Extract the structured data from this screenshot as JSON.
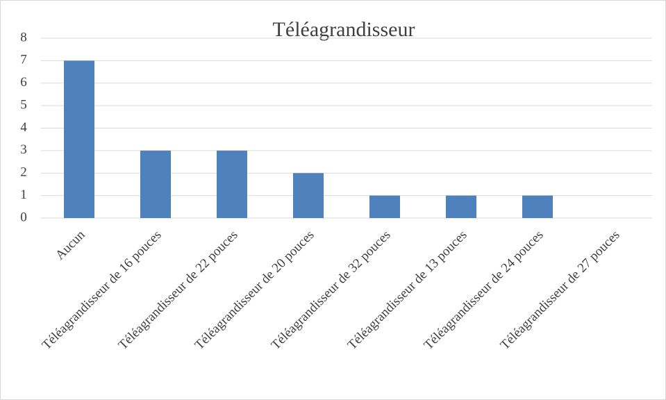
{
  "chart_data": {
    "type": "bar",
    "title": "Téléagrandisseur",
    "categories": [
      "Aucun",
      "Téléagrandisseur de 16 pouces",
      "Téléagrandisseur de 22 pouces",
      "Téléagrandisseur de 20 pouces",
      "Téléagrandisseur de 32 pouces",
      "Téléagrandisseur de 13 pouces",
      "Téléagrandisseur de 24 pouces",
      "Téléagrandisseur de 27 pouces"
    ],
    "values": [
      7,
      3,
      3,
      2,
      1,
      1,
      1,
      0
    ],
    "color": "#4f81bd",
    "ylim": [
      0,
      8
    ],
    "yticks": [
      0,
      1,
      2,
      3,
      4,
      5,
      6,
      7,
      8
    ],
    "grid": true
  }
}
